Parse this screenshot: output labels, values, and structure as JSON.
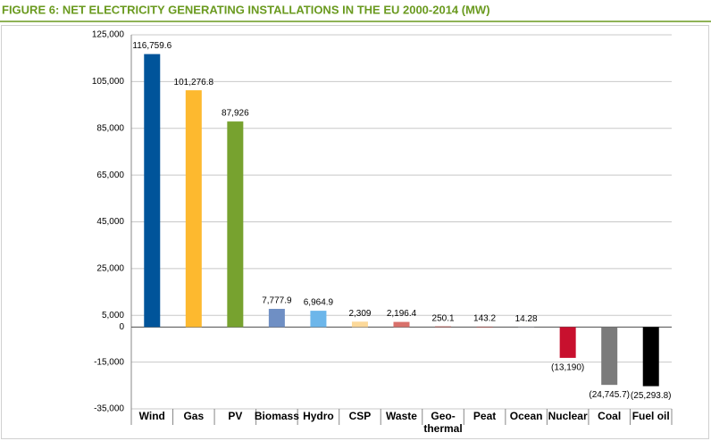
{
  "chart_data": {
    "type": "bar",
    "title": "FIGURE 6: NET ELECTRICITY GENERATING INSTALLATIONS IN THE EU 2000-2014 (MW)",
    "categories": [
      "Wind",
      "Gas",
      "PV",
      "Biomass",
      "Hydro",
      "CSP",
      "Waste",
      "Geo-\nthermal",
      "Peat",
      "Ocean",
      "Nuclear",
      "Coal",
      "Fuel oil"
    ],
    "values": [
      116759.6,
      101276.8,
      87926,
      7777.9,
      6964.9,
      2309,
      2196.4,
      250.1,
      143.2,
      14.28,
      -13190,
      -24745.7,
      -25293.8
    ],
    "value_labels": [
      "116,759.6",
      "101,276.8",
      "87,926",
      "7,777.9",
      "6,964.9",
      "2,309",
      "2,196.4",
      "250.1",
      "143.2",
      "14.28",
      "(13,190)",
      "(24,745.7)",
      "(25,293.8)"
    ],
    "colors": [
      "#00549a",
      "#fdb92f",
      "#77a22f",
      "#6f8fc4",
      "#6cb6ea",
      "#fcd99a",
      "#d9716b",
      "#b8423c",
      "#b0302e",
      "#9aa0a6",
      "#c8102e",
      "#7b7b7b",
      "#000000"
    ],
    "ylim": [
      -35000,
      125000
    ],
    "yticks": [
      {
        "value": -35000,
        "label": "-35,000"
      },
      {
        "value": -15000,
        "label": "-15,000"
      },
      0,
      {
        "value": 5000,
        "label": "5,000"
      },
      {
        "value": 25000,
        "label": "25,000"
      },
      {
        "value": 45000,
        "label": "45,000"
      },
      {
        "value": 65000,
        "label": "65,000"
      },
      {
        "value": 85000,
        "label": "85,000"
      },
      {
        "value": 105000,
        "label": "105,000"
      },
      {
        "value": 125000,
        "label": "125,000"
      }
    ],
    "grid": true
  }
}
